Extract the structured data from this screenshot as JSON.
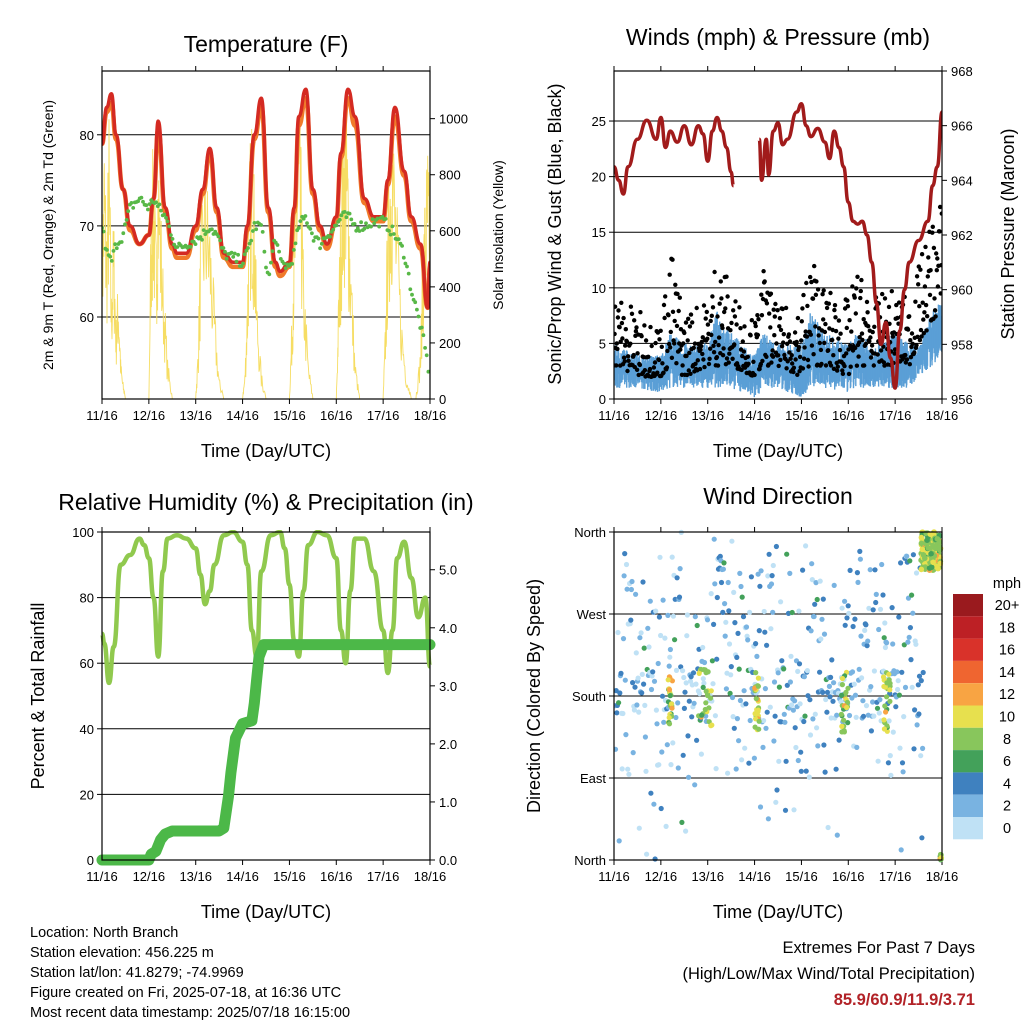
{
  "chart_data": [
    {
      "id": "temperature",
      "type": "line",
      "title": "Temperature (F)",
      "xlabel": "Time (Day/UTC)",
      "ylabel": "2m & 9m T (Red, Orange) & 2m Td (Green)",
      "y2label": "Solar Insolation (Yellow)",
      "x_ticks": [
        "11/16",
        "12/16",
        "13/16",
        "14/16",
        "15/16",
        "16/16",
        "17/16",
        "18/16"
      ],
      "xlim": [
        0,
        7
      ],
      "ylim": [
        51,
        87
      ],
      "y_ticks": [
        60,
        70,
        80
      ],
      "y2lim": [
        0,
        1170
      ],
      "y2_ticks": [
        0,
        200,
        400,
        600,
        800,
        1000
      ],
      "grid": "horizontal",
      "colors": {
        "t2m": "#d42a22",
        "t9m": "#f07a2a",
        "td2m": "#58b847",
        "solar": "#f6dd63"
      },
      "series": [
        {
          "key": "t2m",
          "x": [
            0,
            0.1,
            0.2,
            0.3,
            0.45,
            0.6,
            0.8,
            1.0,
            1.1,
            1.2,
            1.35,
            1.5,
            1.6,
            1.8,
            2.0,
            2.15,
            2.3,
            2.45,
            2.6,
            2.8,
            3.0,
            3.1,
            3.25,
            3.4,
            3.55,
            3.7,
            3.8,
            4.0,
            4.1,
            4.2,
            4.35,
            4.5,
            4.65,
            4.8,
            5.0,
            5.1,
            5.25,
            5.4,
            5.6,
            5.8,
            6.0,
            6.1,
            6.25,
            6.45,
            6.6,
            6.8,
            6.95,
            7.0
          ],
          "values": [
            79,
            83,
            84.5,
            80,
            74,
            70,
            68,
            69,
            73,
            81.5,
            72,
            68,
            67,
            67,
            70,
            74,
            78.5,
            72,
            67,
            66,
            66,
            70,
            80,
            84,
            72,
            66,
            65,
            66,
            72,
            82,
            85,
            74,
            70,
            68,
            71,
            78,
            85,
            82,
            73,
            71,
            71,
            75,
            83,
            76,
            71,
            68,
            61,
            66
          ]
        },
        {
          "key": "t9m",
          "x": [
            0,
            0.1,
            0.2,
            0.3,
            0.45,
            0.6,
            0.8,
            1.0,
            1.1,
            1.2,
            1.35,
            1.5,
            1.6,
            1.8,
            2.0,
            2.15,
            2.3,
            2.45,
            2.6,
            2.8,
            3.0,
            3.1,
            3.25,
            3.4,
            3.55,
            3.7,
            3.8,
            4.0,
            4.1,
            4.2,
            4.35,
            4.5,
            4.65,
            4.8,
            5.0,
            5.1,
            5.25,
            5.4,
            5.6,
            5.8,
            6.0,
            6.1,
            6.25,
            6.45,
            6.6,
            6.8,
            6.95,
            7.0
          ],
          "values": [
            79,
            82.5,
            83.5,
            79.5,
            74,
            69.5,
            68,
            69,
            73,
            80.5,
            71.5,
            67.5,
            66.5,
            66.5,
            69.5,
            73.5,
            78,
            71.5,
            66.5,
            65.5,
            65.5,
            69.5,
            79.5,
            83,
            71.5,
            65.5,
            64.5,
            65.5,
            71.5,
            81,
            84,
            73.5,
            69.5,
            67.5,
            70.5,
            77.5,
            84,
            81,
            72.5,
            70.5,
            70.5,
            74.5,
            82,
            75.5,
            70.5,
            67.5,
            61,
            65.5
          ]
        },
        {
          "key": "td2m",
          "x": [
            0,
            0.1,
            0.2,
            0.3,
            0.45,
            0.6,
            0.8,
            1.0,
            1.1,
            1.2,
            1.35,
            1.5,
            1.6,
            1.8,
            2.0,
            2.15,
            2.3,
            2.45,
            2.6,
            2.8,
            3.0,
            3.1,
            3.25,
            3.4,
            3.55,
            3.7,
            3.8,
            4.0,
            4.1,
            4.2,
            4.35,
            4.5,
            4.65,
            4.8,
            5.0,
            5.1,
            5.25,
            5.4,
            5.6,
            5.8,
            6.0,
            6.1,
            6.25,
            6.45,
            6.6,
            6.8,
            6.95,
            7.0
          ],
          "values": [
            70,
            67,
            66,
            68,
            69,
            72,
            73,
            72,
            73,
            72,
            71,
            69,
            67.5,
            68,
            68.5,
            69,
            70,
            69,
            67,
            66.5,
            66,
            67,
            70,
            70,
            64,
            69,
            66,
            65.5,
            67,
            70,
            71,
            69,
            68,
            69,
            70,
            71,
            71,
            70,
            70,
            70.5,
            70.5,
            70,
            69,
            67,
            63,
            59,
            55,
            53
          ]
        },
        {
          "key": "solar",
          "x": [
            0,
            0.05,
            0.1,
            0.15,
            0.2,
            0.25,
            0.3,
            0.35,
            0.4,
            0.45,
            0.5,
            0.6,
            1.0,
            1.05,
            1.1,
            1.15,
            1.2,
            1.3,
            1.4,
            1.5,
            1.6,
            2.0,
            2.05,
            2.1,
            2.2,
            2.3,
            2.4,
            2.5,
            2.6,
            3.0,
            3.05,
            3.1,
            3.15,
            3.2,
            3.25,
            3.3,
            3.4,
            3.5,
            3.6,
            4.0,
            4.05,
            4.1,
            4.15,
            4.2,
            4.25,
            4.3,
            4.4,
            4.5,
            4.6,
            5.0,
            5.05,
            5.1,
            5.15,
            5.2,
            5.25,
            5.3,
            5.4,
            5.5,
            5.6,
            6.0,
            6.05,
            6.1,
            6.15,
            6.2,
            6.3,
            6.4,
            6.5,
            6.6,
            6.7,
            6.8,
            6.85,
            6.9,
            6.95,
            7.0
          ],
          "values": [
            600,
            1000,
            650,
            1050,
            400,
            700,
            300,
            450,
            150,
            60,
            0,
            0,
            0,
            800,
            950,
            600,
            1000,
            500,
            150,
            0,
            0,
            0,
            200,
            600,
            900,
            700,
            350,
            80,
            0,
            0,
            100,
            400,
            900,
            1050,
            800,
            400,
            100,
            0,
            0,
            0,
            300,
            700,
            950,
            1100,
            900,
            500,
            150,
            0,
            0,
            0,
            400,
            800,
            1050,
            1150,
            950,
            600,
            150,
            0,
            0,
            0,
            300,
            750,
            1000,
            1100,
            700,
            300,
            100,
            0,
            0,
            200,
            600,
            800,
            950,
            700
          ]
        }
      ]
    },
    {
      "id": "winds",
      "type": "scatter",
      "title": "Winds (mph) & Pressure (mb)",
      "xlabel": "Time (Day/UTC)",
      "ylabel": "Sonic/Prop Wind & Gust (Blue, Black)",
      "y2label": "Station Pressure (Maroon)",
      "x_ticks": [
        "11/16",
        "12/16",
        "13/16",
        "14/16",
        "15/16",
        "16/16",
        "17/16",
        "18/16"
      ],
      "xlim": [
        0,
        7
      ],
      "ylim": [
        0,
        29.5
      ],
      "y_ticks": [
        0,
        5,
        10,
        15,
        20,
        25
      ],
      "y2lim": [
        956,
        968
      ],
      "y2_ticks": [
        956,
        958,
        960,
        962,
        964,
        966,
        968
      ],
      "grid": "horizontal",
      "colors": {
        "wind": "#5b9fd6",
        "gust": "#000000",
        "pressure": "#a11b1b"
      },
      "wind_envelope": {
        "x": [
          0,
          0.5,
          1,
          1.2,
          1.5,
          2,
          2.2,
          2.5,
          3,
          3.2,
          3.5,
          4,
          4.2,
          4.5,
          5,
          5.2,
          5.5,
          6,
          6.3,
          6.5,
          6.8,
          7
        ],
        "upper": [
          5,
          4,
          4,
          6,
          5,
          5,
          8,
          6,
          4,
          6,
          5,
          5,
          8,
          6,
          5,
          6,
          5,
          6,
          5,
          5,
          8,
          9
        ],
        "lower": [
          1,
          1,
          0.5,
          1,
          1,
          1,
          1,
          1,
          0,
          1,
          1,
          0,
          1,
          1,
          0.5,
          1,
          1,
          1,
          1,
          2,
          3,
          4
        ]
      },
      "gust_envelope": {
        "x": [
          0,
          0.5,
          1,
          1.2,
          1.5,
          2,
          2.2,
          2.5,
          3,
          3.2,
          3.5,
          4,
          4.2,
          4.5,
          5,
          5.2,
          5.5,
          6,
          6.3,
          6.5,
          6.8,
          7
        ],
        "upper": [
          10,
          8,
          7,
          14,
          8,
          9,
          14,
          10,
          7,
          12,
          8,
          9,
          14,
          10,
          9,
          12,
          9,
          10,
          9,
          12,
          17,
          18
        ],
        "lower": [
          3,
          2,
          2,
          3,
          2,
          3,
          3,
          3,
          2,
          3,
          3,
          2,
          3,
          3,
          2,
          3,
          3,
          3,
          3,
          5,
          7,
          8
        ]
      },
      "series": [
        {
          "key": "pressure",
          "segments": [
            {
              "x": [
                0,
                0.1,
                0.2,
                0.3,
                0.5,
                0.7,
                0.9,
                1.0,
                1.1,
                1.2,
                1.35,
                1.5,
                1.65,
                1.8,
                1.9,
                2.0,
                2.1,
                2.2,
                2.3,
                2.4,
                2.5,
                2.55
              ],
              "values": [
                964.5,
                964,
                963.5,
                964.5,
                965.5,
                966.2,
                965.5,
                966.3,
                965.2,
                965.8,
                965.4,
                966.0,
                965.3,
                966.0,
                965.7,
                964.7,
                965.8,
                966.3,
                965.8,
                965.2,
                964.3,
                963.8
              ]
            },
            {
              "x": [
                3.1,
                3.15,
                3.25,
                3.3,
                3.4,
                3.5,
                3.6,
                3.7,
                3.9,
                4.0,
                4.1,
                4.2,
                4.35,
                4.5,
                4.6,
                4.7,
                4.8,
                4.9,
                5.0,
                5.1,
                5.2,
                5.3,
                5.4,
                5.5,
                5.6,
                5.7,
                5.8,
                5.9,
                6.0,
                6.1,
                6.2,
                6.3,
                6.5,
                6.7,
                6.8,
                6.9,
                7.0
              ],
              "values": [
                965.5,
                964.0,
                965.5,
                964.2,
                965.8,
                966.1,
                965.3,
                965.5,
                966.5,
                966.8,
                966.0,
                965.6,
                965.9,
                965.4,
                964.8,
                965.8,
                965.2,
                964.5,
                963.2,
                962.5,
                962.4,
                962.5,
                962.0,
                961.0,
                959.5,
                958.0,
                958.8,
                957.5,
                956.4,
                958.5,
                960.0,
                961.0,
                961.8,
                962.5,
                963.8,
                964.5,
                966.5
              ]
            }
          ]
        }
      ]
    },
    {
      "id": "humidity",
      "type": "line",
      "title": "Relative Humidity (%) & Precipitation (in)",
      "xlabel": "Time (Day/UTC)",
      "ylabel": "Percent & Total Rainfall",
      "x_ticks": [
        "11/16",
        "12/16",
        "13/16",
        "14/16",
        "15/16",
        "16/16",
        "17/16",
        "18/16"
      ],
      "xlim": [
        0,
        7
      ],
      "ylim": [
        0,
        100
      ],
      "y_ticks": [
        0,
        20,
        40,
        60,
        80,
        100
      ],
      "y2lim": [
        0,
        5.65
      ],
      "y2_ticks": [
        "0.0",
        "1.0",
        "2.0",
        "3.0",
        "4.0",
        "5.0"
      ],
      "grid": "horizontal",
      "colors": {
        "rh": "#90c94e",
        "precip": "#4cb848"
      },
      "series": [
        {
          "key": "rh",
          "x": [
            0,
            0.05,
            0.15,
            0.25,
            0.4,
            0.6,
            0.8,
            0.9,
            1.0,
            1.1,
            1.2,
            1.3,
            1.4,
            1.6,
            1.8,
            2.0,
            2.1,
            2.2,
            2.3,
            2.4,
            2.6,
            2.8,
            3.0,
            3.1,
            3.2,
            3.3,
            3.4,
            3.6,
            3.8,
            3.9,
            4.0,
            4.1,
            4.2,
            4.3,
            4.4,
            4.6,
            4.8,
            5.0,
            5.1,
            5.2,
            5.3,
            5.4,
            5.6,
            5.8,
            6.0,
            6.1,
            6.2,
            6.3,
            6.45,
            6.6,
            6.75,
            6.9,
            7.0
          ],
          "values": [
            69,
            66,
            54,
            65,
            90,
            93,
            98,
            96,
            92,
            80,
            62,
            88,
            98,
            99,
            98,
            95,
            87,
            78,
            82,
            90,
            99,
            100,
            97,
            90,
            70,
            62,
            88,
            99,
            100,
            95,
            84,
            67,
            62,
            82,
            96,
            100,
            99,
            92,
            70,
            60,
            82,
            98,
            98,
            88,
            70,
            57,
            70,
            92,
            97,
            86,
            74,
            80,
            59
          ]
        },
        {
          "key": "precip",
          "x": [
            0,
            1.0,
            1.05,
            1.15,
            1.25,
            1.35,
            1.5,
            2.5,
            2.6,
            2.7,
            2.75,
            2.85,
            3.0,
            3.2,
            3.25,
            3.3,
            3.35,
            3.45,
            7.0
          ],
          "values": [
            0,
            0,
            0.1,
            0.15,
            0.35,
            0.45,
            0.5,
            0.5,
            0.55,
            1.1,
            1.5,
            2.1,
            2.35,
            2.4,
            2.7,
            3.1,
            3.5,
            3.71,
            3.71
          ]
        }
      ]
    },
    {
      "id": "direction",
      "type": "scatter",
      "title": "Wind Direction",
      "xlabel": "Time (Day/UTC)",
      "ylabel": "Direction (Colored By Speed)",
      "x_ticks": [
        "11/16",
        "12/16",
        "13/16",
        "14/16",
        "15/16",
        "16/16",
        "17/16",
        "18/16"
      ],
      "xlim": [
        0,
        7
      ],
      "y_ticks": [
        "North",
        "East",
        "South",
        "West",
        "North"
      ],
      "ylim": [
        0,
        360
      ],
      "grid": "horizontal",
      "legend": {
        "title": "mph",
        "placement": "right",
        "labels": [
          "20+",
          "18",
          "16",
          "14",
          "12",
          "10",
          "8",
          "6",
          "4",
          "2",
          "0"
        ],
        "colors": [
          "#9a1a1e",
          "#bd2025",
          "#d9322a",
          "#ef6530",
          "#f8a443",
          "#e7e04e",
          "#88c65c",
          "#43a15a",
          "#3f81bf",
          "#79b3e1",
          "#bfe1f5"
        ]
      }
    }
  ],
  "footer": {
    "location": "Location: North Branch",
    "elevation": "Station elevation: 456.225 m",
    "latlon": "Station lat/lon: 41.8279; -74.9969",
    "created": "Figure created on Fri, 2025-07-18, at 16:36 UTC",
    "recent": "Most recent data timestamp: 2025/07/18 16:15:00"
  },
  "extremes": {
    "title": "Extremes For Past 7 Days",
    "subtitle": "(High/Low/Max Wind/Total Precipitation)",
    "values": "85.9/60.9/11.9/3.71"
  }
}
